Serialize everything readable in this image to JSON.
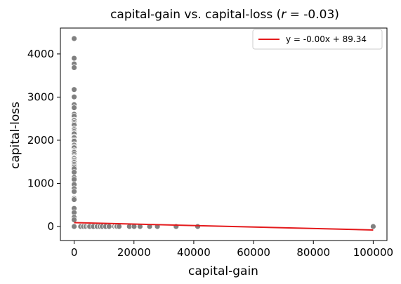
{
  "chart_data": {
    "type": "scatter",
    "title_prefix": "capital-gain vs. capital-loss (",
    "title_r_symbol": "r",
    "title_suffix": " = -0.03)",
    "xlabel": "capital-gain",
    "ylabel": "capital-loss",
    "xlim": [
      -4600,
      104600
    ],
    "ylim": [
      -325,
      4600
    ],
    "x_ticks": [
      0,
      20000,
      40000,
      60000,
      80000,
      100000
    ],
    "y_ticks": [
      0,
      1000,
      2000,
      3000,
      4000
    ],
    "grid": false,
    "legend": {
      "location": "top-right",
      "entries": [
        {
          "label": "y = -0.00x + 89.34",
          "color": "#e41a1c",
          "marker": "line"
        }
      ]
    },
    "point_color": "#808080",
    "line_color": "#e41a1c",
    "regression": {
      "slope": -0.0017,
      "intercept": 89.34,
      "x_range": [
        0,
        99999
      ]
    },
    "points": [
      {
        "x": 0,
        "y": 4356
      },
      {
        "x": 0,
        "y": 3900
      },
      {
        "x": 0,
        "y": 3770
      },
      {
        "x": 0,
        "y": 3683
      },
      {
        "x": 0,
        "y": 3175
      },
      {
        "x": 0,
        "y": 3004
      },
      {
        "x": 0,
        "y": 2824
      },
      {
        "x": 0,
        "y": 2754
      },
      {
        "x": 0,
        "y": 2603
      },
      {
        "x": 0,
        "y": 2559
      },
      {
        "x": 0,
        "y": 2472
      },
      {
        "x": 0,
        "y": 2457
      },
      {
        "x": 0,
        "y": 2415
      },
      {
        "x": 0,
        "y": 2377
      },
      {
        "x": 0,
        "y": 2352
      },
      {
        "x": 0,
        "y": 2267
      },
      {
        "x": 0,
        "y": 2246
      },
      {
        "x": 0,
        "y": 2206
      },
      {
        "x": 0,
        "y": 2174
      },
      {
        "x": 0,
        "y": 2149
      },
      {
        "x": 0,
        "y": 2080
      },
      {
        "x": 0,
        "y": 2057
      },
      {
        "x": 0,
        "y": 2001
      },
      {
        "x": 0,
        "y": 1980
      },
      {
        "x": 0,
        "y": 1902
      },
      {
        "x": 0,
        "y": 1887
      },
      {
        "x": 0,
        "y": 1848
      },
      {
        "x": 0,
        "y": 1825
      },
      {
        "x": 0,
        "y": 1762
      },
      {
        "x": 0,
        "y": 1740
      },
      {
        "x": 0,
        "y": 1721
      },
      {
        "x": 0,
        "y": 1672
      },
      {
        "x": 0,
        "y": 1628
      },
      {
        "x": 0,
        "y": 1602
      },
      {
        "x": 0,
        "y": 1590
      },
      {
        "x": 0,
        "y": 1573
      },
      {
        "x": 0,
        "y": 1539
      },
      {
        "x": 0,
        "y": 1504
      },
      {
        "x": 0,
        "y": 1485
      },
      {
        "x": 0,
        "y": 1444
      },
      {
        "x": 0,
        "y": 1408
      },
      {
        "x": 0,
        "y": 1380
      },
      {
        "x": 0,
        "y": 1340
      },
      {
        "x": 0,
        "y": 1258
      },
      {
        "x": 0,
        "y": 1138
      },
      {
        "x": 0,
        "y": 1092
      },
      {
        "x": 0,
        "y": 974
      },
      {
        "x": 0,
        "y": 880
      },
      {
        "x": 0,
        "y": 810
      },
      {
        "x": 0,
        "y": 653
      },
      {
        "x": 0,
        "y": 625
      },
      {
        "x": 0,
        "y": 419
      },
      {
        "x": 0,
        "y": 323
      },
      {
        "x": 0,
        "y": 213
      },
      {
        "x": 0,
        "y": 155
      },
      {
        "x": 0,
        "y": 0
      },
      {
        "x": 2174,
        "y": 0
      },
      {
        "x": 3103,
        "y": 0
      },
      {
        "x": 3908,
        "y": 0
      },
      {
        "x": 4787,
        "y": 0
      },
      {
        "x": 5178,
        "y": 0
      },
      {
        "x": 6418,
        "y": 0
      },
      {
        "x": 7688,
        "y": 0
      },
      {
        "x": 8614,
        "y": 0
      },
      {
        "x": 9386,
        "y": 0
      },
      {
        "x": 10520,
        "y": 0
      },
      {
        "x": 11678,
        "y": 0
      },
      {
        "x": 13550,
        "y": 0
      },
      {
        "x": 14084,
        "y": 0
      },
      {
        "x": 14344,
        "y": 0
      },
      {
        "x": 15024,
        "y": 0
      },
      {
        "x": 18481,
        "y": 0
      },
      {
        "x": 20051,
        "y": 0
      },
      {
        "x": 22040,
        "y": 0
      },
      {
        "x": 25236,
        "y": 0
      },
      {
        "x": 27828,
        "y": 0
      },
      {
        "x": 34095,
        "y": 0
      },
      {
        "x": 41310,
        "y": 0
      },
      {
        "x": 99999,
        "y": 0
      }
    ]
  }
}
